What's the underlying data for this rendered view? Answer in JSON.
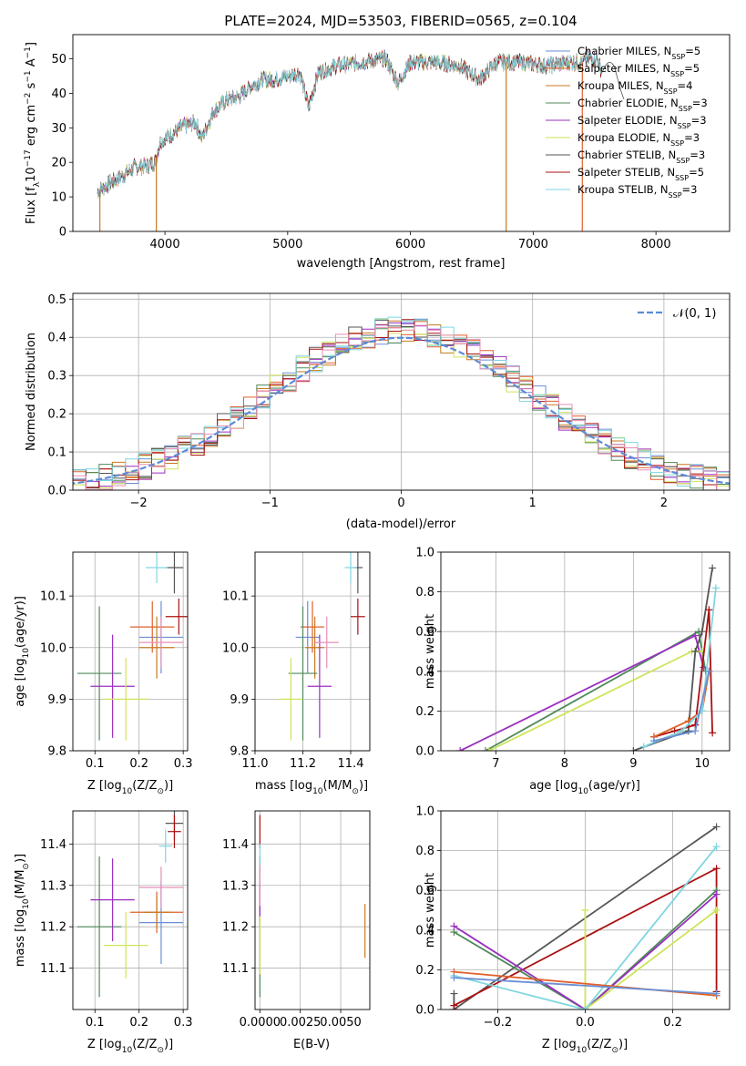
{
  "title": "PLATE=2024, MJD=53503, FIBERID=0565, z=0.104",
  "colors": {
    "chabrier_miles": "#6a8fd6",
    "salpeter_miles": "#e0602a",
    "kroupa_miles": "#c77a20",
    "chabrier_elodie": "#4f8a5a",
    "salpeter_elodie": "#9b2fc0",
    "kroupa_elodie": "#cfe35a",
    "chabrier_stelib": "#555555",
    "salpeter_stelib": "#aa1111",
    "kroupa_stelib": "#7fd6e0",
    "pink": "#e68fb8",
    "gauss": "#5b8bd6"
  },
  "legend": [
    {
      "label": "Chabrier MILES, N",
      "sub": "SSP",
      "eq": "=5",
      "color": "#6a8fd6"
    },
    {
      "label": "Salpeter MILES, N",
      "sub": "SSP",
      "eq": "=5",
      "color": "#e0602a"
    },
    {
      "label": "Kroupa MILES, N",
      "sub": "SSP",
      "eq": "=4",
      "color": "#c77a20"
    },
    {
      "label": "Chabrier ELODIE, N",
      "sub": "SSP",
      "eq": "=3",
      "color": "#4f8a5a"
    },
    {
      "label": "Salpeter ELODIE, N",
      "sub": "SSP",
      "eq": "=3",
      "color": "#9b2fc0"
    },
    {
      "label": "Kroupa ELODIE, N",
      "sub": "SSP",
      "eq": "=3",
      "color": "#cfe35a"
    },
    {
      "label": "Chabrier STELIB, N",
      "sub": "SSP",
      "eq": "=3",
      "color": "#555555"
    },
    {
      "label": "Salpeter STELIB, N",
      "sub": "SSP",
      "eq": "=5",
      "color": "#aa1111"
    },
    {
      "label": "Kroupa STELIB, N",
      "sub": "SSP",
      "eq": "=3",
      "color": "#7fd6e0"
    }
  ],
  "chart_data": [
    {
      "type": "line",
      "xlabel": "wavelength [Angstrom, rest frame]",
      "ylabel_pre": "Flux [f",
      "ylabel_mid": "10",
      "ylabel_exp": "−17",
      "ylabel_post": " erg cm",
      "ylabel_post2": " s",
      "ylabel_post3": " A",
      "xlim": [
        3250,
        8600
      ],
      "ylim": [
        0,
        57
      ],
      "xticks": [
        "4000",
        "5000",
        "6000",
        "7000",
        "8000"
      ],
      "xtick_values": [
        4000,
        5000,
        6000,
        7000,
        8000
      ],
      "yticks": [
        "0",
        "10",
        "20",
        "30",
        "40",
        "50"
      ],
      "ytick_values": [
        0,
        10,
        20,
        30,
        40,
        50
      ],
      "continuum": [
        [
          3450,
          11.5
        ],
        [
          3550,
          14
        ],
        [
          3650,
          16
        ],
        [
          3750,
          18.5
        ],
        [
          3850,
          19
        ],
        [
          3920,
          20
        ],
        [
          3960,
          26
        ],
        [
          4050,
          28
        ],
        [
          4150,
          30.5
        ],
        [
          4250,
          31.5
        ],
        [
          4300,
          27
        ],
        [
          4400,
          35
        ],
        [
          4500,
          38
        ],
        [
          4600,
          39
        ],
        [
          4700,
          42
        ],
        [
          4800,
          44
        ],
        [
          4900,
          44
        ],
        [
          5000,
          45
        ],
        [
          5100,
          46
        ],
        [
          5170,
          36
        ],
        [
          5250,
          46
        ],
        [
          5400,
          48
        ],
        [
          5600,
          49
        ],
        [
          5800,
          50
        ],
        [
          5900,
          43
        ],
        [
          6000,
          49
        ],
        [
          6200,
          49
        ],
        [
          6400,
          48
        ],
        [
          6563,
          44
        ],
        [
          6700,
          49
        ],
        [
          6900,
          49
        ],
        [
          7100,
          48
        ],
        [
          7300,
          49
        ],
        [
          7400,
          49
        ],
        [
          7450,
          50
        ],
        [
          7520,
          50
        ],
        [
          7560,
          46
        ]
      ],
      "dropouts": [
        [
          3470,
          "#c77a20"
        ],
        [
          3930,
          "#c77a20"
        ],
        [
          6780,
          "#c77a20"
        ],
        [
          7400,
          "#e0602a"
        ]
      ]
    },
    {
      "type": "histogram",
      "xlabel": "(data-model)/error",
      "ylabel": "Normed distribution",
      "xlim": [
        -2.5,
        2.5
      ],
      "ylim": [
        0,
        0.515
      ],
      "xticks": [
        "−2",
        "−1",
        "0",
        "1",
        "2"
      ],
      "xtick_values": [
        -2,
        -1,
        0,
        1,
        2
      ],
      "yticks": [
        "0.0",
        "0.1",
        "0.2",
        "0.3",
        "0.4",
        "0.5"
      ],
      "ytick_values": [
        0,
        0.1,
        0.2,
        0.3,
        0.4,
        0.5
      ],
      "legend": "𝒩(0, 1)",
      "bin_width": 0.1
    },
    {
      "type": "scatter",
      "xlabel": "Z [log",
      "xlabel_sub": "10",
      "xlabel_rest": "(Z/Z",
      "xlabel_end": ")]",
      "ylabel": "age  [log",
      "ylabel_sub": "10",
      "ylabel_rest": "(age/yr)]",
      "xlim": [
        0.05,
        0.31
      ],
      "ylim": [
        9.8,
        10.185
      ],
      "xticks": [
        "0.1",
        "0.2",
        "0.3"
      ],
      "xtick_values": [
        0.1,
        0.2,
        0.3
      ],
      "yticks": [
        "9.8",
        "9.9",
        "10.0",
        "10.1"
      ],
      "ytick_values": [
        9.8,
        9.9,
        10.0,
        10.1
      ],
      "points": [
        {
          "x": 0.25,
          "y": 10.02,
          "xe": 0.05,
          "ye": 0.07,
          "c": "#6a8fd6"
        },
        {
          "x": 0.23,
          "y": 10.04,
          "xe": 0.05,
          "ye": 0.05,
          "c": "#e0602a"
        },
        {
          "x": 0.24,
          "y": 10.0,
          "xe": 0.04,
          "ye": 0.06,
          "c": "#c77a20"
        },
        {
          "x": 0.11,
          "y": 9.95,
          "xe": 0.05,
          "ye": 0.13,
          "c": "#4f8a5a"
        },
        {
          "x": 0.14,
          "y": 9.925,
          "xe": 0.05,
          "ye": 0.1,
          "c": "#9b2fc0"
        },
        {
          "x": 0.17,
          "y": 9.9,
          "xe": 0.05,
          "ye": 0.08,
          "c": "#cfe35a"
        },
        {
          "x": 0.28,
          "y": 10.155,
          "xe": 0.02,
          "ye": 0.05,
          "c": "#555555"
        },
        {
          "x": 0.29,
          "y": 10.06,
          "xe": 0.03,
          "ye": 0.035,
          "c": "#aa1111"
        },
        {
          "x": 0.24,
          "y": 10.155,
          "xe": 0.025,
          "ye": 0.03,
          "c": "#7fd6e0"
        },
        {
          "x": 0.25,
          "y": 10.01,
          "xe": 0.05,
          "ye": 0.05,
          "c": "#e68fb8"
        }
      ]
    },
    {
      "type": "scatter",
      "xlabel": "mass [log",
      "xlabel_sub": "10",
      "xlabel_rest": "(M/M",
      "xlabel_end": ")]",
      "xlim": [
        11.0,
        11.48
      ],
      "ylim": [
        9.8,
        10.185
      ],
      "xticks": [
        "11.0",
        "11.2",
        "11.4"
      ],
      "xtick_values": [
        11.0,
        11.2,
        11.4
      ],
      "yticks": [
        "9.8",
        "9.9",
        "10.0",
        "10.1"
      ],
      "ytick_values": [
        9.8,
        9.9,
        10.0,
        10.1
      ],
      "points": [
        {
          "x": 11.22,
          "y": 10.02,
          "xe": 0.05,
          "ye": 0.07,
          "c": "#6a8fd6"
        },
        {
          "x": 11.24,
          "y": 10.04,
          "xe": 0.05,
          "ye": 0.05,
          "c": "#e0602a"
        },
        {
          "x": 11.25,
          "y": 10.0,
          "xe": 0.04,
          "ye": 0.06,
          "c": "#c77a20"
        },
        {
          "x": 11.2,
          "y": 9.95,
          "xe": 0.06,
          "ye": 0.13,
          "c": "#4f8a5a"
        },
        {
          "x": 11.27,
          "y": 9.925,
          "xe": 0.05,
          "ye": 0.1,
          "c": "#9b2fc0"
        },
        {
          "x": 11.15,
          "y": 9.9,
          "xe": 0.05,
          "ye": 0.08,
          "c": "#cfe35a"
        },
        {
          "x": 11.43,
          "y": 10.155,
          "xe": 0.02,
          "ye": 0.05,
          "c": "#555555"
        },
        {
          "x": 11.43,
          "y": 10.06,
          "xe": 0.03,
          "ye": 0.035,
          "c": "#aa1111"
        },
        {
          "x": 11.4,
          "y": 10.155,
          "xe": 0.025,
          "ye": 0.03,
          "c": "#7fd6e0"
        },
        {
          "x": 11.3,
          "y": 10.01,
          "xe": 0.05,
          "ye": 0.05,
          "c": "#e68fb8"
        }
      ]
    },
    {
      "type": "line",
      "xlabel": "age  [log",
      "xlabel_sub": "10",
      "xlabel_rest": "(age/yr)]",
      "ylabel": "mass weight",
      "xlim": [
        6.2,
        10.4
      ],
      "ylim": [
        0,
        1.0
      ],
      "xticks": [
        "7",
        "8",
        "9",
        "10"
      ],
      "xtick_values": [
        7,
        8,
        9,
        10
      ],
      "yticks": [
        "0.0",
        "0.2",
        "0.4",
        "0.6",
        "0.8",
        "1.0"
      ],
      "ytick_values": [
        0,
        0.2,
        0.4,
        0.6,
        0.8,
        1.0
      ],
      "series": [
        {
          "c": "#4f8a5a",
          "pts": [
            [
              6.85,
              0.0
            ],
            [
              9.95,
              0.6
            ],
            [
              10.05,
              0.4
            ]
          ]
        },
        {
          "c": "#9b2fc0",
          "pts": [
            [
              6.48,
              0.0
            ],
            [
              9.9,
              0.58
            ],
            [
              10.02,
              0.42
            ]
          ]
        },
        {
          "c": "#cfe35a",
          "pts": [
            [
              6.9,
              0.0
            ],
            [
              9.85,
              0.5
            ],
            [
              10.0,
              0.5
            ]
          ]
        },
        {
          "c": "#555555",
          "pts": [
            [
              9.0,
              0.0
            ],
            [
              9.8,
              0.1
            ],
            [
              9.9,
              0.5
            ],
            [
              10.0,
              0.6
            ],
            [
              10.15,
              0.92
            ]
          ]
        },
        {
          "c": "#aa1111",
          "pts": [
            [
              9.3,
              0.07
            ],
            [
              9.6,
              0.1
            ],
            [
              9.9,
              0.13
            ],
            [
              10.1,
              0.71
            ],
            [
              10.15,
              0.09
            ]
          ]
        },
        {
          "c": "#e0602a",
          "pts": [
            [
              9.3,
              0.07
            ],
            [
              9.8,
              0.15
            ],
            [
              10.0,
              0.2
            ],
            [
              10.1,
              0.4
            ]
          ]
        },
        {
          "c": "#7fd6e0",
          "pts": [
            [
              9.15,
              0.02
            ],
            [
              9.7,
              0.1
            ],
            [
              10.0,
              0.2
            ],
            [
              10.2,
              0.82
            ]
          ]
        },
        {
          "c": "#6a8fd6",
          "pts": [
            [
              9.3,
              0.05
            ],
            [
              9.9,
              0.1
            ],
            [
              10.1,
              0.4
            ]
          ]
        }
      ]
    },
    {
      "type": "scatter",
      "xlabel": "Z [log",
      "xlabel_sub": "10",
      "xlabel_rest": "(Z/Z",
      "xlabel_end": ")]",
      "ylabel": "mass [log",
      "ylabel_sub": "10",
      "ylabel_rest": "(M/M",
      "ylabel_end": ")]",
      "xlim": [
        0.05,
        0.31
      ],
      "ylim": [
        11.0,
        11.48
      ],
      "xticks": [
        "0.1",
        "0.2",
        "0.3"
      ],
      "xtick_values": [
        0.1,
        0.2,
        0.3
      ],
      "yticks": [
        "11.1",
        "11.2",
        "11.3",
        "11.4"
      ],
      "ytick_values": [
        11.1,
        11.2,
        11.3,
        11.4
      ],
      "points": [
        {
          "x": 0.25,
          "y": 11.21,
          "xe": 0.05,
          "ye": 0.1,
          "c": "#6a8fd6"
        },
        {
          "x": 0.24,
          "y": 11.235,
          "xe": 0.06,
          "ye": 0.05,
          "c": "#e0602a"
        },
        {
          "x": 0.24,
          "y": 11.235,
          "xe": 0.03,
          "ye": 0.04,
          "c": "#c77a20"
        },
        {
          "x": 0.11,
          "y": 11.2,
          "xe": 0.05,
          "ye": 0.17,
          "c": "#4f8a5a"
        },
        {
          "x": 0.14,
          "y": 11.265,
          "xe": 0.05,
          "ye": 0.1,
          "c": "#9b2fc0"
        },
        {
          "x": 0.17,
          "y": 11.155,
          "xe": 0.05,
          "ye": 0.08,
          "c": "#cfe35a"
        },
        {
          "x": 0.28,
          "y": 11.45,
          "xe": 0.02,
          "ye": 0.04,
          "c": "#555555"
        },
        {
          "x": 0.28,
          "y": 11.43,
          "xe": 0.015,
          "ye": 0.04,
          "c": "#aa1111"
        },
        {
          "x": 0.26,
          "y": 11.395,
          "xe": 0.015,
          "ye": 0.04,
          "c": "#7fd6e0"
        },
        {
          "x": 0.25,
          "y": 11.295,
          "xe": 0.05,
          "ye": 0.05,
          "c": "#e68fb8"
        }
      ]
    },
    {
      "type": "scatter",
      "xlabel": "E(B-V)",
      "xlim": [
        -0.0003,
        0.0068
      ],
      "ylim": [
        11.0,
        11.48
      ],
      "xticks": [
        "0.0000",
        "0.0025",
        "0.0050"
      ],
      "xtick_values": [
        0,
        0.0025,
        0.005
      ],
      "yticks": [
        "11.1",
        "11.2",
        "11.3",
        "11.4"
      ],
      "ytick_values": [
        11.1,
        11.2,
        11.3,
        11.4
      ],
      "points": [
        {
          "x": 0.0,
          "y": 11.2,
          "xe": 0,
          "ye": 0.17,
          "c": "#4f8a5a"
        },
        {
          "x": 0.0,
          "y": 11.27,
          "xe": 0,
          "ye": 0.07,
          "c": "#9b2fc0"
        },
        {
          "x": 0.0,
          "y": 11.155,
          "xe": 0,
          "ye": 0.07,
          "c": "#cfe35a"
        },
        {
          "x": 0.0,
          "y": 11.43,
          "xe": 0,
          "ye": 0.04,
          "c": "#aa1111"
        },
        {
          "x": 0.0,
          "y": 11.35,
          "xe": 0,
          "ye": 0.05,
          "c": "#7fd6e0"
        },
        {
          "x": 0.0,
          "y": 11.3,
          "xe": 0,
          "ye": 0.05,
          "c": "#e68fb8"
        },
        {
          "x": 0.0065,
          "y": 11.19,
          "xe": 0,
          "ye": 0.065,
          "c": "#c77a20"
        }
      ]
    },
    {
      "type": "line",
      "xlabel": "Z [log",
      "xlabel_sub": "10",
      "xlabel_rest": "(Z/Z",
      "xlabel_end": ")]",
      "ylabel": "mass weight",
      "xlim": [
        -0.33,
        0.33
      ],
      "ylim": [
        0,
        1.0
      ],
      "xticks": [
        "−0.2",
        "0.0",
        "0.2"
      ],
      "xtick_values": [
        -0.2,
        0.0,
        0.2
      ],
      "yticks": [
        "0.0",
        "0.2",
        "0.4",
        "0.6",
        "0.8",
        "1.0"
      ],
      "ytick_values": [
        0,
        0.2,
        0.4,
        0.6,
        0.8,
        1.0
      ],
      "series": [
        {
          "c": "#555555",
          "pts": [
            [
              -0.3,
              0.08
            ],
            [
              -0.3,
              0.0
            ],
            [
              0.3,
              0.92
            ]
          ]
        },
        {
          "c": "#aa1111",
          "pts": [
            [
              -0.3,
              0.02
            ],
            [
              0.3,
              0.71
            ],
            [
              0.3,
              0.09
            ]
          ]
        },
        {
          "c": "#4f8a5a",
          "pts": [
            [
              -0.3,
              0.39
            ],
            [
              0.0,
              0.0
            ],
            [
              0.3,
              0.6
            ]
          ]
        },
        {
          "c": "#9b2fc0",
          "pts": [
            [
              -0.3,
              0.42
            ],
            [
              0.0,
              0.0
            ],
            [
              0.3,
              0.58
            ]
          ]
        },
        {
          "c": "#cfe35a",
          "pts": [
            [
              0.0,
              0.5
            ],
            [
              0.0,
              0.0
            ],
            [
              0.3,
              0.5
            ]
          ]
        },
        {
          "c": "#7fd6e0",
          "pts": [
            [
              -0.3,
              0.17
            ],
            [
              0.0,
              0.0
            ],
            [
              0.3,
              0.82
            ]
          ]
        },
        {
          "c": "#e0602a",
          "pts": [
            [
              -0.3,
              0.19
            ],
            [
              0.3,
              0.07
            ]
          ]
        },
        {
          "c": "#6a8fd6",
          "pts": [
            [
              -0.3,
              0.16
            ],
            [
              0.3,
              0.08
            ]
          ]
        }
      ]
    }
  ]
}
